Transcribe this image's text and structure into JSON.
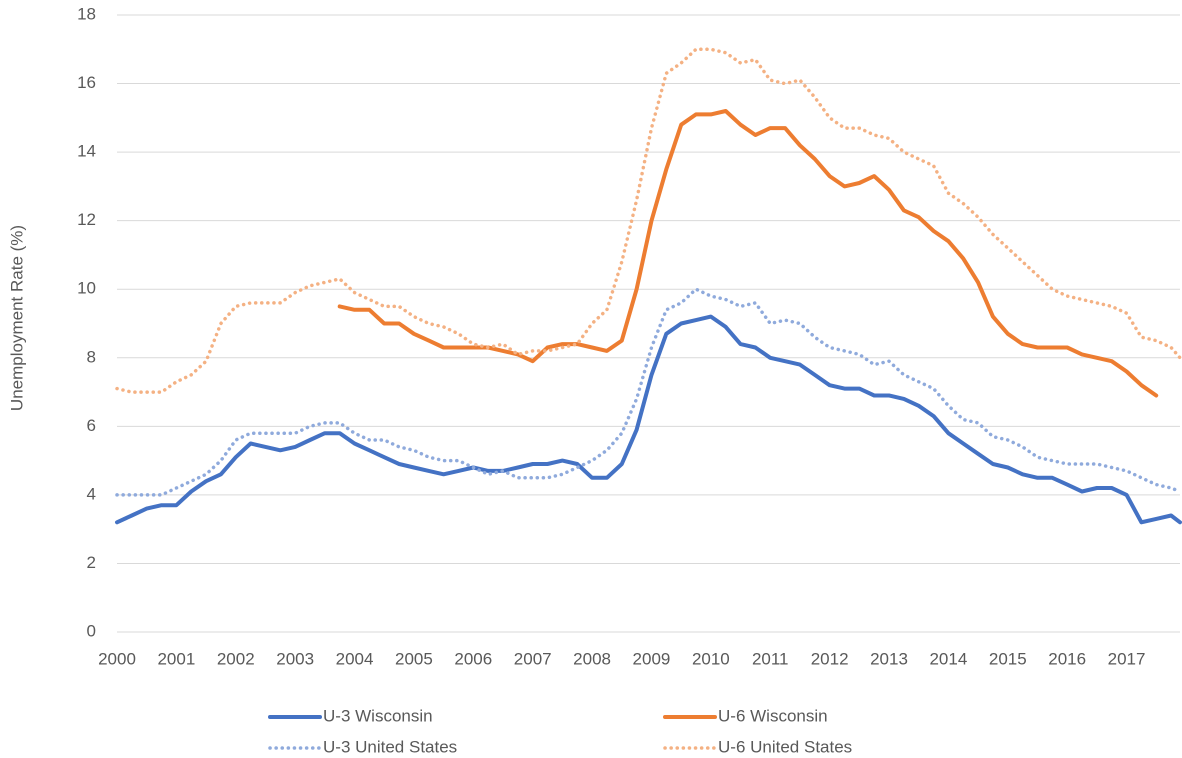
{
  "chart_data": {
    "type": "line",
    "y_label": "Unemployment Rate (%)",
    "x": [
      2000,
      2000.25,
      2000.5,
      2000.75,
      2001,
      2001.25,
      2001.5,
      2001.75,
      2002,
      2002.25,
      2002.5,
      2002.75,
      2003,
      2003.25,
      2003.5,
      2003.75,
      2004,
      2004.25,
      2004.5,
      2004.75,
      2005,
      2005.25,
      2005.5,
      2005.75,
      2006,
      2006.25,
      2006.5,
      2006.75,
      2007,
      2007.25,
      2007.5,
      2007.75,
      2008,
      2008.25,
      2008.5,
      2008.75,
      2009,
      2009.25,
      2009.5,
      2009.75,
      2010,
      2010.25,
      2010.5,
      2010.75,
      2011,
      2011.25,
      2011.5,
      2011.75,
      2012,
      2012.25,
      2012.5,
      2012.75,
      2013,
      2013.25,
      2013.5,
      2013.75,
      2014,
      2014.25,
      2014.5,
      2014.75,
      2015,
      2015.25,
      2015.5,
      2015.75,
      2016,
      2016.25,
      2016.5,
      2016.75,
      2017,
      2017.25,
      2017.5,
      2017.75,
      2017.9
    ],
    "series": [
      {
        "name": "U-3 Wisconsin",
        "color": "#4472c4",
        "style": "solid",
        "values": [
          3.2,
          3.4,
          3.6,
          3.7,
          3.7,
          4.1,
          4.4,
          4.6,
          5.1,
          5.5,
          5.4,
          5.3,
          5.4,
          5.6,
          5.8,
          5.8,
          5.5,
          5.3,
          5.1,
          4.9,
          4.8,
          4.7,
          4.6,
          4.7,
          4.8,
          4.7,
          4.7,
          4.8,
          4.9,
          4.9,
          5.0,
          4.9,
          4.5,
          4.5,
          4.9,
          5.9,
          7.5,
          8.7,
          9.0,
          9.1,
          9.2,
          8.9,
          8.4,
          8.3,
          8.0,
          7.9,
          7.8,
          7.5,
          7.2,
          7.1,
          7.1,
          6.9,
          6.9,
          6.8,
          6.6,
          6.3,
          5.8,
          5.5,
          5.2,
          4.9,
          4.8,
          4.6,
          4.5,
          4.5,
          4.3,
          4.1,
          4.2,
          4.2,
          4.0,
          3.2,
          3.3,
          3.4,
          3.2
        ]
      },
      {
        "name": "U-6 Wisconsin",
        "color": "#ed7d31",
        "style": "solid",
        "values": [
          null,
          null,
          null,
          null,
          null,
          null,
          null,
          null,
          null,
          null,
          null,
          null,
          null,
          null,
          null,
          9.5,
          9.4,
          9.4,
          9.0,
          9.0,
          8.7,
          8.5,
          8.3,
          8.3,
          8.3,
          8.3,
          8.2,
          8.1,
          7.9,
          8.3,
          8.4,
          8.4,
          8.3,
          8.2,
          8.5,
          10.0,
          12.0,
          13.5,
          14.8,
          15.1,
          15.1,
          15.2,
          14.8,
          14.5,
          14.7,
          14.7,
          14.2,
          13.8,
          13.3,
          13.0,
          13.1,
          13.3,
          12.9,
          12.3,
          12.1,
          11.7,
          11.4,
          10.9,
          10.2,
          9.2,
          8.7,
          8.4,
          8.3,
          8.3,
          8.3,
          8.1,
          8.0,
          7.9,
          7.6,
          7.2,
          6.9,
          null,
          null
        ]
      },
      {
        "name": "U-3 United States",
        "color": "#8faadc",
        "style": "dotted",
        "values": [
          4.0,
          4.0,
          4.0,
          4.0,
          4.2,
          4.4,
          4.6,
          5.0,
          5.6,
          5.8,
          5.8,
          5.8,
          5.8,
          6.0,
          6.1,
          6.1,
          5.8,
          5.6,
          5.6,
          5.4,
          5.3,
          5.1,
          5.0,
          5.0,
          4.8,
          4.6,
          4.7,
          4.5,
          4.5,
          4.5,
          4.6,
          4.8,
          5.0,
          5.3,
          5.8,
          6.8,
          8.3,
          9.4,
          9.6,
          10.0,
          9.8,
          9.7,
          9.5,
          9.6,
          9.0,
          9.1,
          9.0,
          8.6,
          8.3,
          8.2,
          8.1,
          7.8,
          7.9,
          7.5,
          7.3,
          7.1,
          6.6,
          6.2,
          6.1,
          5.7,
          5.6,
          5.4,
          5.1,
          5.0,
          4.9,
          4.9,
          4.9,
          4.8,
          4.7,
          4.5,
          4.3,
          4.2,
          4.1
        ]
      },
      {
        "name": "U-6 United States",
        "color": "#f4b183",
        "style": "dotted",
        "values": [
          7.1,
          7.0,
          7.0,
          7.0,
          7.3,
          7.5,
          7.9,
          9.0,
          9.5,
          9.6,
          9.6,
          9.6,
          9.9,
          10.1,
          10.2,
          10.3,
          9.9,
          9.7,
          9.5,
          9.5,
          9.2,
          9.0,
          8.9,
          8.7,
          8.4,
          8.3,
          8.4,
          8.1,
          8.2,
          8.2,
          8.3,
          8.4,
          9.0,
          9.4,
          10.8,
          12.6,
          14.7,
          16.3,
          16.6,
          17.0,
          17.0,
          16.9,
          16.6,
          16.7,
          16.1,
          16.0,
          16.1,
          15.6,
          15.0,
          14.7,
          14.7,
          14.5,
          14.4,
          14.0,
          13.8,
          13.6,
          12.8,
          12.5,
          12.1,
          11.6,
          11.2,
          10.8,
          10.4,
          10.0,
          9.8,
          9.7,
          9.6,
          9.5,
          9.3,
          8.6,
          8.5,
          8.3,
          8.0
        ]
      }
    ],
    "xlim": [
      2000,
      2017.9
    ],
    "xticks": [
      2000,
      2001,
      2002,
      2003,
      2004,
      2005,
      2006,
      2007,
      2008,
      2009,
      2010,
      2011,
      2012,
      2013,
      2014,
      2015,
      2016,
      2017
    ],
    "ylim": [
      0,
      18
    ],
    "yticks": [
      0,
      2,
      4,
      6,
      8,
      10,
      12,
      14,
      16,
      18
    ],
    "grid": true,
    "legend": "bottom"
  }
}
